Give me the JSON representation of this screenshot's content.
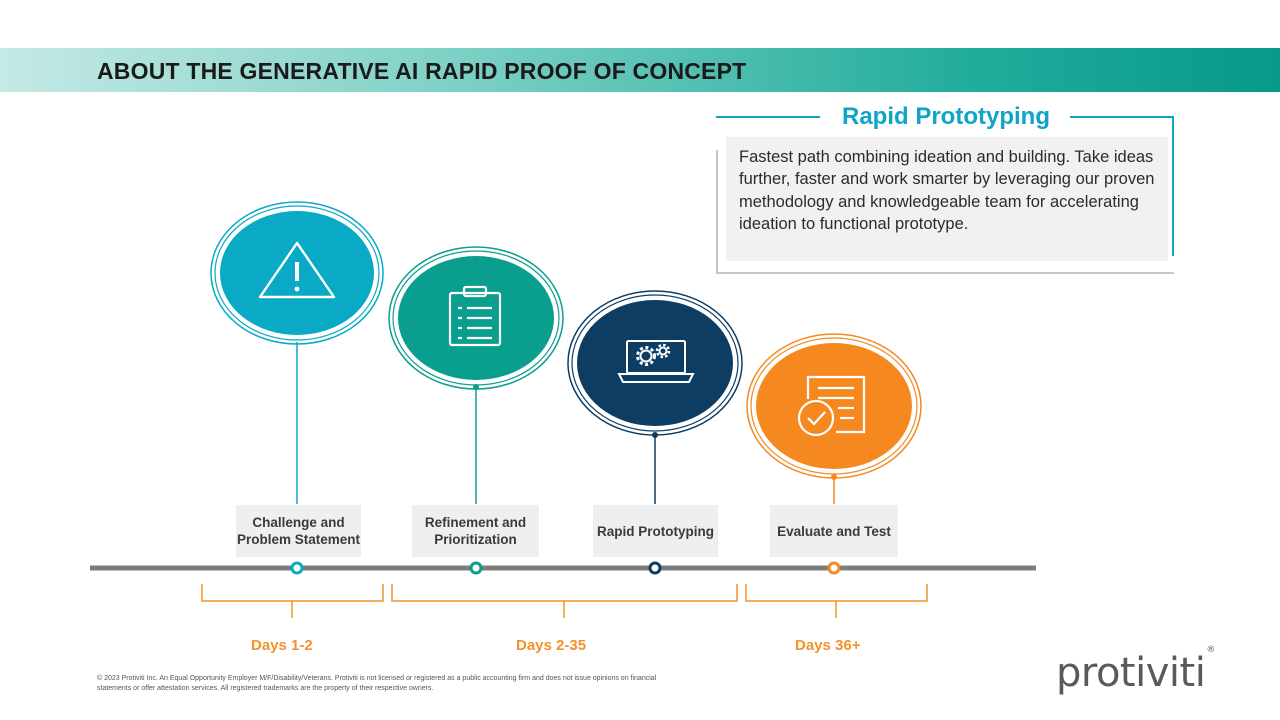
{
  "header": {
    "title": "ABOUT THE GENERATIVE AI RAPID PROOF OF CONCEPT"
  },
  "callout": {
    "title": "Rapid Prototyping",
    "body": "Fastest path combining ideation and building. Take ideas further, faster and work smarter by leveraging our proven methodology and knowledgeable team for accelerating ideation to functional prototype."
  },
  "stages": [
    {
      "label": "Challenge and Problem Statement",
      "icon": "warning-icon",
      "color": "#0aa9c6"
    },
    {
      "label": "Refinement and Prioritization",
      "icon": "clipboard-icon",
      "color": "#0a9e8e"
    },
    {
      "label": "Rapid Prototyping",
      "icon": "laptop-gears-icon",
      "color": "#0e3d63"
    },
    {
      "label": "Evaluate and Test",
      "icon": "document-check-icon",
      "color": "#f5891f"
    }
  ],
  "timeline": {
    "periods": [
      {
        "label": "Days 1-2"
      },
      {
        "label": "Days 2-35"
      },
      {
        "label": "Days 36+"
      }
    ]
  },
  "footer": {
    "disclaimer": "© 2023 Protiviti Inc. An Equal Opportunity Employer M/F/Disability/Veterans. Protiviti is not licensed or registered as a public accounting firm and does not issue opinions on financial statements or offer attestation services. All registered trademarks are the property of their respective owners.",
    "logo_text": "protiviti"
  }
}
